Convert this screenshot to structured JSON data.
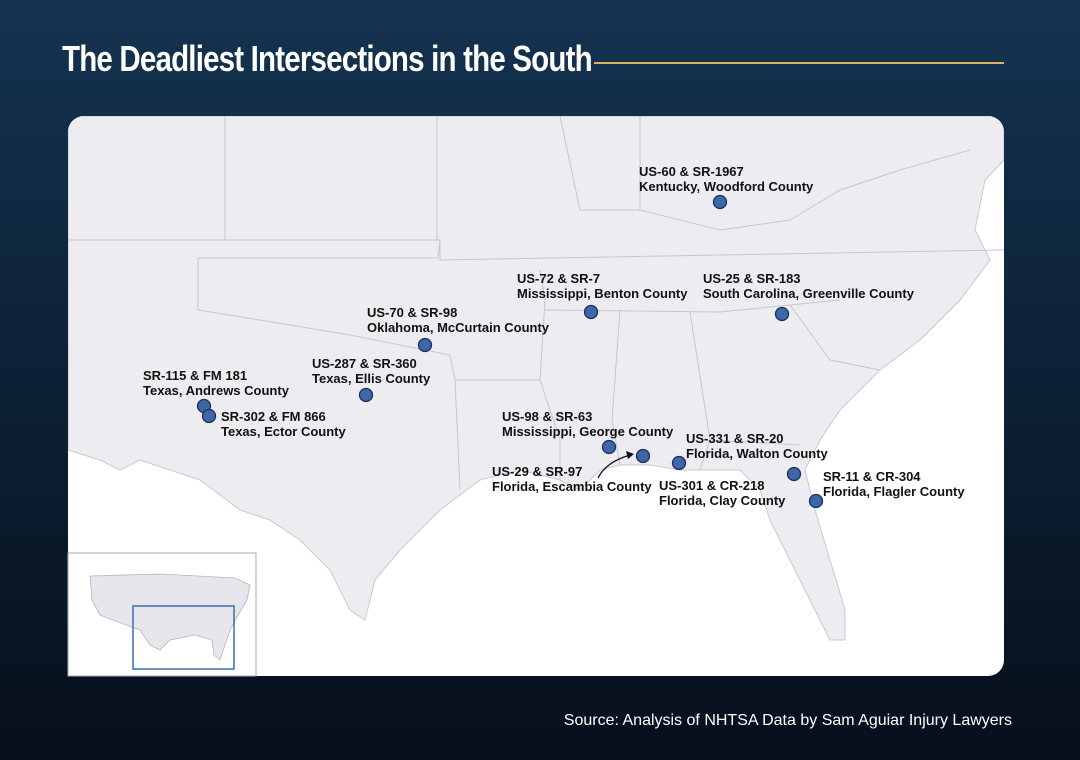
{
  "title": "The Deadliest Intersections in the South",
  "source": "Source: Analysis of NHTSA Data by Sam Aguiar Injury Lawyers",
  "locations": [
    {
      "road": "US-60 & SR-1967",
      "place": "Kentucky, Woodford County"
    },
    {
      "road": "US-72 & SR-7",
      "place": "Mississippi, Benton County"
    },
    {
      "road": "US-25 & SR-183",
      "place": "South Carolina, Greenville County"
    },
    {
      "road": "US-70 & SR-98",
      "place": "Oklahoma, McCurtain County"
    },
    {
      "road": "US-287 & SR-360",
      "place": "Texas, Ellis County"
    },
    {
      "road": "SR-115 & FM 181",
      "place": "Texas, Andrews County"
    },
    {
      "road": "SR-302 & FM 866",
      "place": "Texas, Ector County"
    },
    {
      "road": "US-98 & SR-63",
      "place": "Mississippi, George County"
    },
    {
      "road": "US-331 & SR-20",
      "place": "Florida, Walton County"
    },
    {
      "road": "US-29 & SR-97",
      "place": "Florida, Escambia County"
    },
    {
      "road": "US-301 & CR-218",
      "place": "Florida, Clay County"
    },
    {
      "road": "SR-11 & CR-304",
      "place": "Florida, Flagler County"
    }
  ]
}
